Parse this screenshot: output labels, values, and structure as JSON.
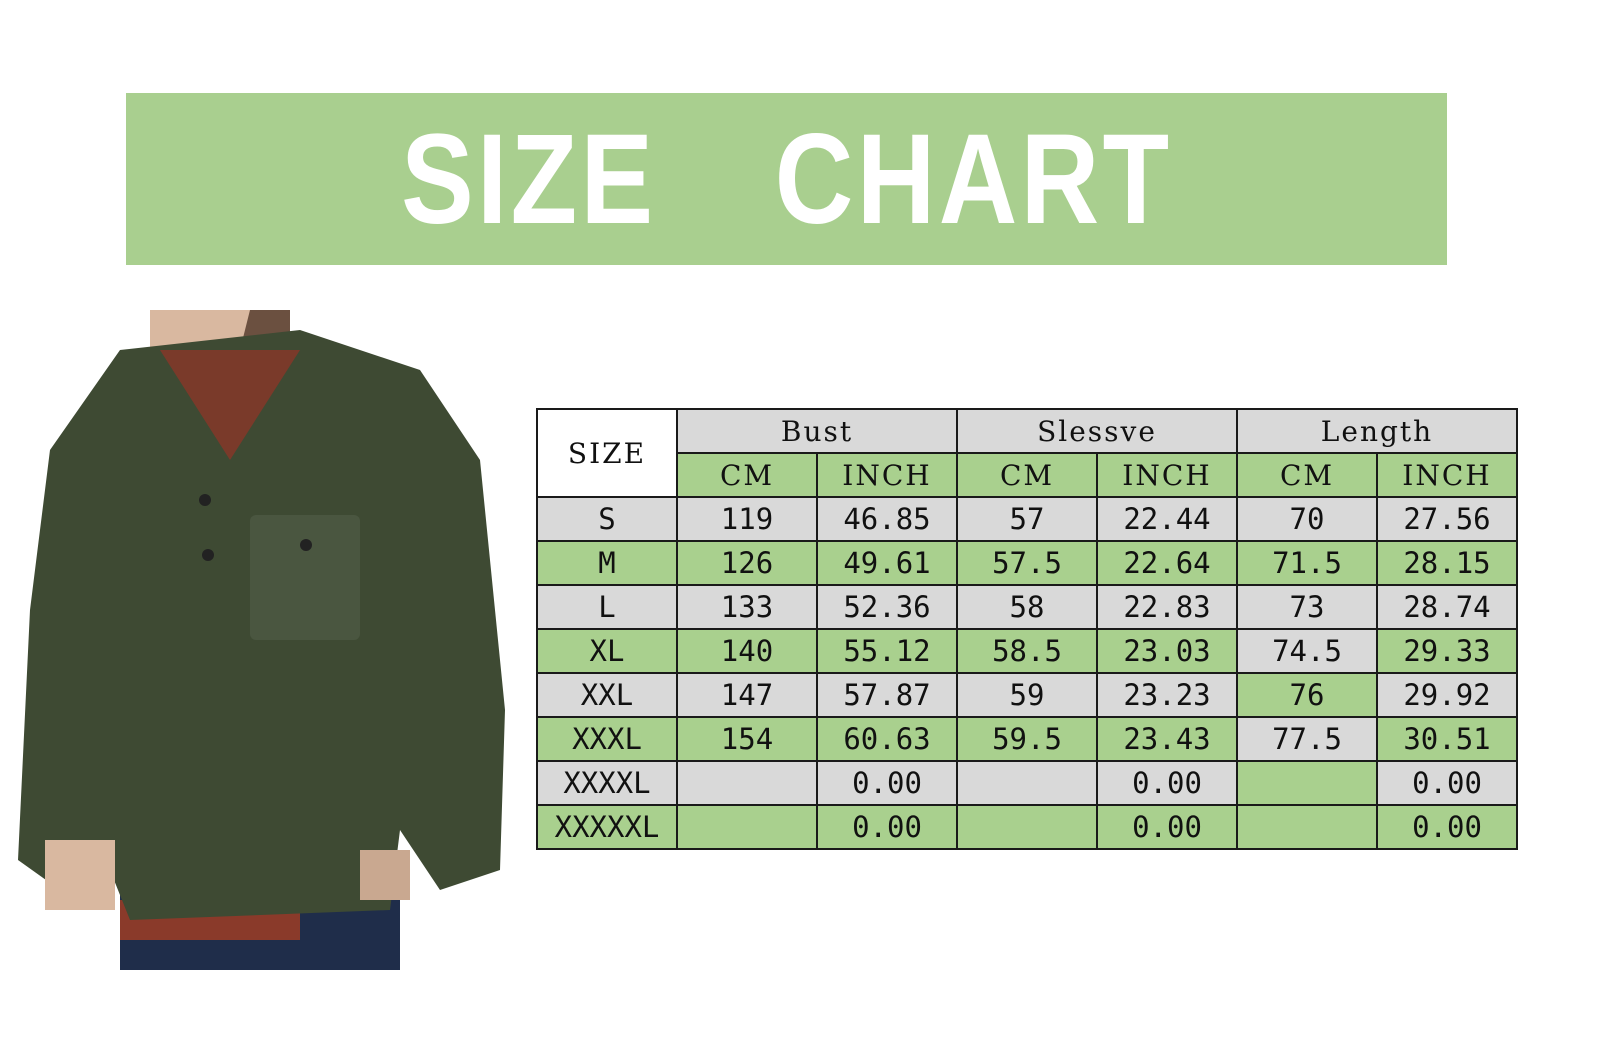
{
  "title": "SIZE  CHART",
  "colors": {
    "banner": "#a9cf8f",
    "green_cell": "#a9d08e",
    "grey_cell": "#d9d9d9",
    "sweater": "#3e4a33"
  },
  "product_image": "man wearing olive green sherpa fleece henley pullover with chest pocket",
  "table": {
    "size_header": "SIZE",
    "groups": [
      "Bust",
      "Slessve",
      "Length"
    ],
    "units": [
      "CM",
      "INCH",
      "CM",
      "INCH",
      "CM",
      "INCH"
    ],
    "rows": [
      {
        "size": "S",
        "cells": [
          "119",
          "46.85",
          "57",
          "22.44",
          "70",
          "27.56"
        ],
        "fills": [
          "y",
          "y",
          "y",
          "y",
          "y",
          "y",
          "y"
        ]
      },
      {
        "size": "M",
        "cells": [
          "126",
          "49.61",
          "57.5",
          "22.64",
          "71.5",
          "28.15"
        ],
        "fills": [
          "g",
          "g",
          "g",
          "g",
          "g",
          "g",
          "g"
        ]
      },
      {
        "size": "L",
        "cells": [
          "133",
          "52.36",
          "58",
          "22.83",
          "73",
          "28.74"
        ],
        "fills": [
          "y",
          "y",
          "y",
          "y",
          "y",
          "y",
          "y"
        ]
      },
      {
        "size": "XL",
        "cells": [
          "140",
          "55.12",
          "58.5",
          "23.03",
          "74.5",
          "29.33"
        ],
        "fills": [
          "g",
          "g",
          "g",
          "g",
          "g",
          "y",
          "g"
        ]
      },
      {
        "size": "XXL",
        "cells": [
          "147",
          "57.87",
          "59",
          "23.23",
          "76",
          "29.92"
        ],
        "fills": [
          "y",
          "y",
          "y",
          "y",
          "y",
          "g",
          "y"
        ]
      },
      {
        "size": "XXXL",
        "cells": [
          "154",
          "60.63",
          "59.5",
          "23.43",
          "77.5",
          "30.51"
        ],
        "fills": [
          "g",
          "g",
          "g",
          "g",
          "g",
          "y",
          "g"
        ]
      },
      {
        "size": "XXXXL",
        "cells": [
          "",
          "0.00",
          "",
          "0.00",
          "",
          "0.00"
        ],
        "fills": [
          "y",
          "y",
          "y",
          "y",
          "y",
          "g",
          "y"
        ]
      },
      {
        "size": "XXXXXL",
        "cells": [
          "",
          "0.00",
          "",
          "0.00",
          "",
          "0.00"
        ],
        "fills": [
          "g",
          "g",
          "g",
          "g",
          "g",
          "g",
          "g"
        ]
      }
    ]
  }
}
